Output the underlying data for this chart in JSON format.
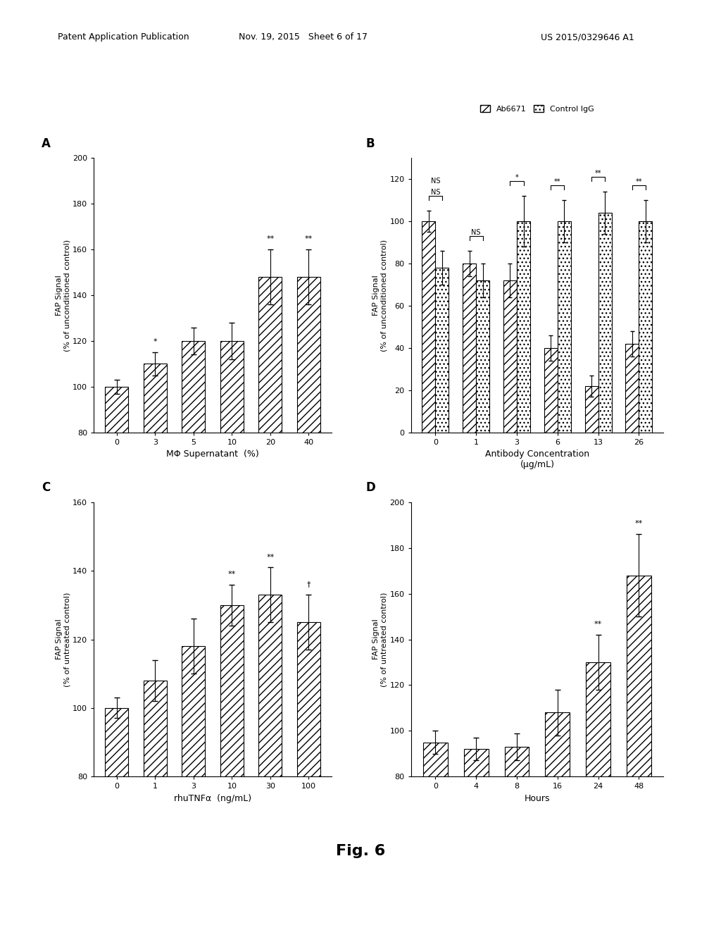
{
  "panel_A": {
    "label": "A",
    "categories": [
      "0",
      "3",
      "5",
      "10",
      "20",
      "40"
    ],
    "values": [
      100,
      110,
      120,
      120,
      148,
      148
    ],
    "errors": [
      3,
      5,
      6,
      8,
      12,
      12
    ],
    "significance": [
      "",
      "*",
      "",
      "",
      "**",
      "**"
    ],
    "xlabel": "MΦ Supernatant  (%)",
    "ylabel": "FAP Signal\n(% of unconditioned control)",
    "ylim": [
      80,
      200
    ],
    "yticks": [
      80,
      100,
      120,
      140,
      160,
      180,
      200
    ]
  },
  "panel_B": {
    "label": "B",
    "categories": [
      "0",
      "1",
      "3",
      "6",
      "13",
      "26"
    ],
    "values_ab": [
      100,
      80,
      72,
      40,
      22,
      42
    ],
    "values_ctrl": [
      78,
      72,
      100,
      100,
      104,
      100
    ],
    "errors_ab": [
      5,
      6,
      8,
      6,
      5,
      6
    ],
    "errors_ctrl": [
      8,
      8,
      12,
      10,
      10,
      10
    ],
    "significance": [
      "NS",
      "NS",
      "*",
      "**",
      "**",
      "**"
    ],
    "xlabel": "Antibody Concentration\n(µg/mL)",
    "ylabel": "FAP Signal\n(% of unconditioned control)",
    "ylim": [
      0,
      130
    ],
    "yticks": [
      0,
      20,
      40,
      60,
      80,
      100,
      120
    ],
    "legend_ab": "Ab6671",
    "legend_ctrl": "Control IgG"
  },
  "panel_C": {
    "label": "C",
    "categories": [
      "0",
      "1",
      "3",
      "10",
      "30",
      "100"
    ],
    "values": [
      100,
      108,
      118,
      130,
      133,
      125
    ],
    "errors": [
      3,
      6,
      8,
      6,
      8,
      8
    ],
    "significance": [
      "",
      "",
      "",
      "**",
      "**",
      "†"
    ],
    "xlabel": "rhuTNFα  (ng/mL)",
    "ylabel": "FAP Signal\n(% of untreated control)",
    "ylim": [
      80,
      160
    ],
    "yticks": [
      80,
      100,
      120,
      140,
      160
    ]
  },
  "panel_D": {
    "label": "D",
    "categories": [
      "0",
      "4",
      "8",
      "16",
      "24",
      "48"
    ],
    "values": [
      95,
      92,
      93,
      108,
      130,
      168
    ],
    "errors": [
      5,
      5,
      6,
      10,
      12,
      18
    ],
    "significance": [
      "",
      "",
      "",
      "",
      "**",
      "**"
    ],
    "xlabel": "Hours",
    "ylabel": "FAP Signal\n(% of untreated control)",
    "ylim": [
      80,
      200
    ],
    "yticks": [
      80,
      100,
      120,
      140,
      160,
      180,
      200
    ]
  },
  "background_color": "white",
  "fig_label": "Fig. 6"
}
